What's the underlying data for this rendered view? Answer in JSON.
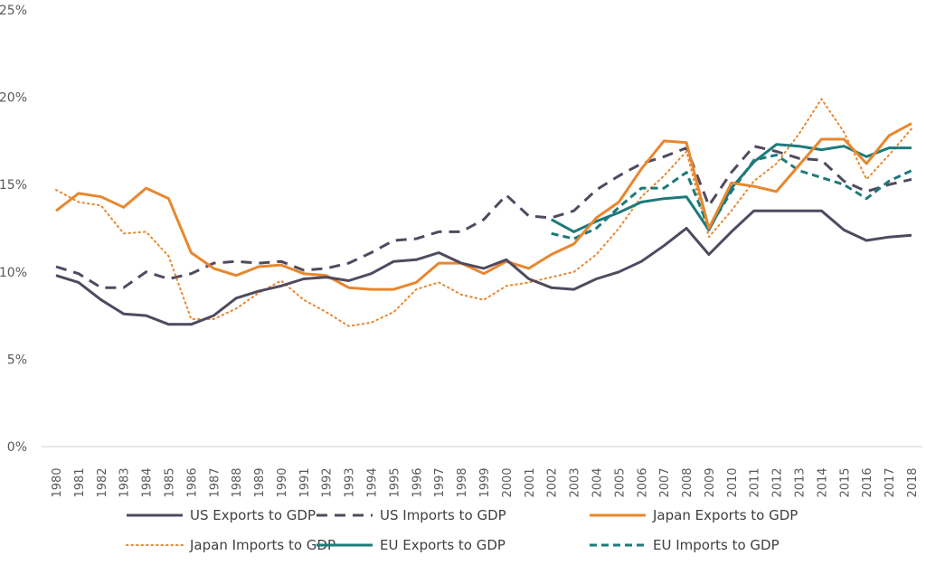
{
  "chart_data": {
    "type": "line",
    "title": "",
    "xlabel": "",
    "ylabel": "",
    "ylim": [
      0,
      25
    ],
    "yticks": [
      0,
      5,
      10,
      15,
      20,
      25
    ],
    "ytick_labels": [
      "0%",
      "5%",
      "10%",
      "15%",
      "20%",
      "25%"
    ],
    "grid": false,
    "legend_position": "bottom",
    "x": [
      1980,
      1981,
      1982,
      1983,
      1984,
      1985,
      1986,
      1987,
      1988,
      1989,
      1990,
      1991,
      1992,
      1993,
      1994,
      1995,
      1996,
      1997,
      1998,
      1999,
      2000,
      2001,
      2002,
      2003,
      2004,
      2005,
      2006,
      2007,
      2008,
      2009,
      2010,
      2011,
      2012,
      2013,
      2014,
      2015,
      2016,
      2017,
      2018
    ],
    "x_labels": [
      "1980",
      "1981",
      "1982",
      "1983",
      "1984",
      "1985",
      "1986",
      "1987",
      "1988",
      "1989",
      "1990",
      "1991",
      "1992",
      "1993",
      "1994",
      "1995",
      "1996",
      "1997",
      "1998",
      "1999",
      "2000",
      "2001",
      "2002",
      "2003",
      "2004",
      "2005",
      "2006",
      "2007",
      "2008",
      "2009",
      "2010",
      "2011",
      "2012",
      "2013",
      "2014",
      "2015",
      "2016",
      "2017",
      "2018"
    ],
    "series": [
      {
        "name": "US Exports to GDP",
        "color": "#514A5F",
        "style": "solid",
        "values": [
          9.8,
          9.4,
          8.4,
          7.6,
          7.5,
          7.0,
          7.0,
          7.5,
          8.5,
          8.9,
          9.2,
          9.6,
          9.7,
          9.5,
          9.9,
          10.6,
          10.7,
          11.1,
          10.5,
          10.2,
          10.7,
          9.6,
          9.1,
          9.0,
          9.6,
          10.0,
          10.6,
          11.5,
          12.5,
          11.0,
          12.3,
          13.5,
          13.5,
          13.5,
          13.5,
          12.4,
          11.8,
          12.0,
          12.1
        ]
      },
      {
        "name": "US Imports to GDP",
        "color": "#514A5F",
        "style": "dashed",
        "values": [
          10.3,
          9.9,
          9.1,
          9.1,
          10.0,
          9.6,
          9.9,
          10.5,
          10.6,
          10.5,
          10.6,
          10.1,
          10.2,
          10.5,
          11.1,
          11.8,
          11.9,
          12.3,
          12.3,
          13.0,
          14.4,
          13.2,
          13.1,
          13.5,
          14.7,
          15.5,
          16.2,
          16.6,
          17.1,
          13.8,
          15.7,
          17.2,
          16.9,
          16.5,
          16.4,
          15.2,
          14.6,
          15.0,
          15.3
        ]
      },
      {
        "name": "Japan Exports to GDP",
        "color": "#E8872E",
        "style": "solid",
        "values": [
          13.5,
          14.5,
          14.3,
          13.7,
          14.8,
          14.2,
          11.1,
          10.2,
          9.8,
          10.3,
          10.4,
          9.9,
          9.8,
          9.1,
          9.0,
          9.0,
          9.4,
          10.5,
          10.5,
          9.9,
          10.6,
          10.2,
          11.0,
          11.6,
          13.1,
          14.0,
          15.9,
          17.5,
          17.4,
          12.5,
          15.1,
          14.9,
          14.6,
          16.1,
          17.6,
          17.6,
          16.2,
          17.8,
          18.5
        ]
      },
      {
        "name": "Japan Imports to GDP",
        "color": "#E8872E",
        "style": "dotted",
        "values": [
          14.7,
          14.0,
          13.8,
          12.2,
          12.3,
          10.9,
          7.3,
          7.3,
          7.9,
          8.8,
          9.5,
          8.4,
          7.7,
          6.9,
          7.1,
          7.7,
          9.0,
          9.4,
          8.7,
          8.4,
          9.2,
          9.4,
          9.7,
          10.0,
          11.0,
          12.5,
          14.3,
          15.5,
          16.9,
          12.0,
          13.5,
          15.2,
          16.2,
          17.9,
          19.9,
          18.0,
          15.3,
          16.7,
          18.2
        ]
      },
      {
        "name": "EU  Exports to GDP",
        "color": "#1D7A7B",
        "style": "solid",
        "start_year": 2002,
        "values": [
          null,
          null,
          null,
          null,
          null,
          null,
          null,
          null,
          null,
          null,
          null,
          null,
          null,
          null,
          null,
          null,
          null,
          null,
          null,
          null,
          null,
          null,
          13.0,
          12.3,
          12.9,
          13.4,
          14.0,
          14.2,
          14.3,
          12.4,
          14.8,
          16.3,
          17.3,
          17.2,
          17.0,
          17.2,
          16.6,
          17.1,
          17.1
        ]
      },
      {
        "name": "EU  Imports to GDP",
        "color": "#1D7A7B",
        "style": "dashed",
        "start_year": 2002,
        "values": [
          null,
          null,
          null,
          null,
          null,
          null,
          null,
          null,
          null,
          null,
          null,
          null,
          null,
          null,
          null,
          null,
          null,
          null,
          null,
          null,
          null,
          null,
          12.2,
          11.9,
          12.5,
          13.7,
          14.8,
          14.8,
          15.7,
          12.5,
          14.6,
          16.4,
          16.7,
          15.8,
          15.4,
          15.0,
          14.2,
          15.2,
          15.8
        ]
      }
    ]
  }
}
